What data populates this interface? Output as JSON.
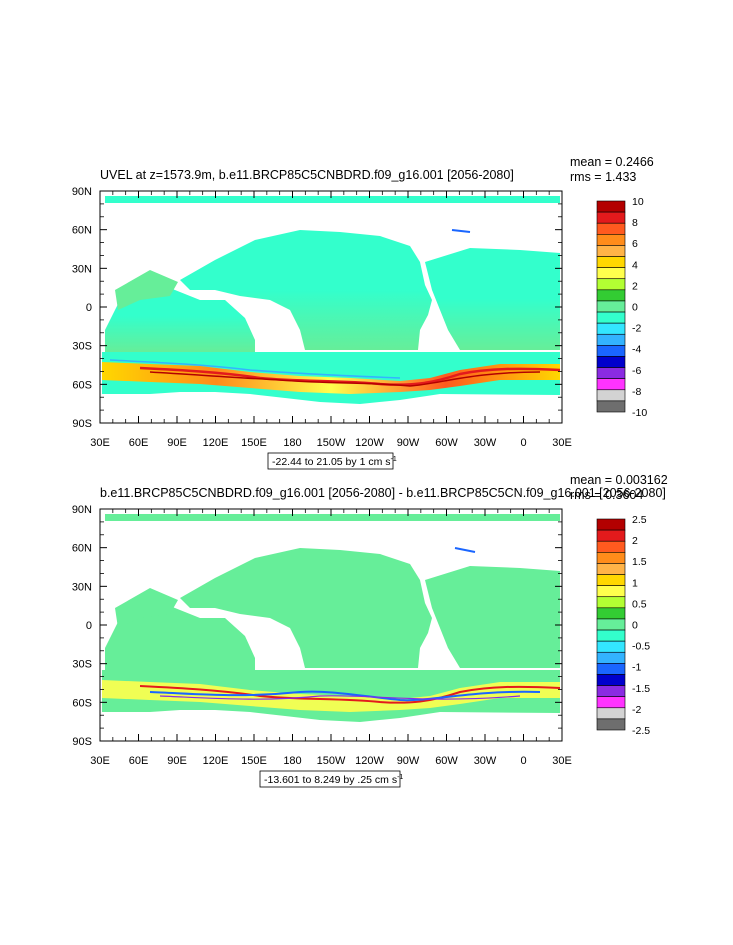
{
  "chart_data": [
    {
      "type": "heatmap",
      "title": "UVEL at z=1573.9m, b.e11.BRCP85C5CNBDRD.f09_g16.001 [2056-2080]",
      "stats": [
        "mean = 0.2466",
        "rms = 1.433"
      ],
      "x_ticks": [
        "30E",
        "60E",
        "90E",
        "120E",
        "150E",
        "180",
        "150W",
        "120W",
        "90W",
        "60W",
        "30W",
        "0",
        "30E"
      ],
      "y_ticks": [
        "90N",
        "60N",
        "30N",
        "0",
        "30S",
        "60S",
        "90S"
      ],
      "xlim": [
        30,
        390
      ],
      "ylim": [
        -90,
        90
      ],
      "contour_info": "-22.44 to 21.05 by 1 cm s",
      "contour_info_sup": "-1",
      "colorbar": {
        "labels": [
          "10",
          "8",
          "6",
          "4",
          "2",
          "0",
          "-2",
          "-4",
          "-6",
          "-8",
          "-10"
        ],
        "colors": [
          "#b30000",
          "#e31a1c",
          "#ff5a1f",
          "#ff8c1a",
          "#ffb347",
          "#ffd700",
          "#ffff4d",
          "#b3ff33",
          "#33cc33",
          "#66ee99",
          "#33ffcc",
          "#33e6ff",
          "#33b3ff",
          "#1a66ff",
          "#0000cc",
          "#8a2be2",
          "#ff33ff",
          "#d3d3d3",
          "#6e6e6e"
        ]
      }
    },
    {
      "type": "heatmap",
      "title": "b.e11.BRCP85C5CNBDRD.f09_g16.001 [2056-2080] - b.e11.BRCP85C5CN.f09_g16.001 [2056-2080]",
      "stats": [
        "mean = 0.003162",
        "rms = 0.3604"
      ],
      "x_ticks": [
        "30E",
        "60E",
        "90E",
        "120E",
        "150E",
        "180",
        "150W",
        "120W",
        "90W",
        "60W",
        "30W",
        "0",
        "30E"
      ],
      "y_ticks": [
        "90N",
        "60N",
        "30N",
        "0",
        "30S",
        "60S",
        "90S"
      ],
      "xlim": [
        30,
        390
      ],
      "ylim": [
        -90,
        90
      ],
      "contour_info": "-13.601 to 8.249 by .25 cm s",
      "contour_info_sup": "-1",
      "colorbar": {
        "labels": [
          "2.5",
          "2",
          "1.5",
          "1",
          "0.5",
          "0",
          "-0.5",
          "-1",
          "-1.5",
          "-2",
          "-2.5"
        ],
        "colors": [
          "#b30000",
          "#e31a1c",
          "#ff5a1f",
          "#ff8c1a",
          "#ffb347",
          "#ffd700",
          "#ffff4d",
          "#b3ff33",
          "#33cc33",
          "#66ee99",
          "#33ffcc",
          "#33e6ff",
          "#33b3ff",
          "#1a66ff",
          "#0000cc",
          "#8a2be2",
          "#ff33ff",
          "#d3d3d3",
          "#6e6e6e"
        ]
      }
    }
  ]
}
